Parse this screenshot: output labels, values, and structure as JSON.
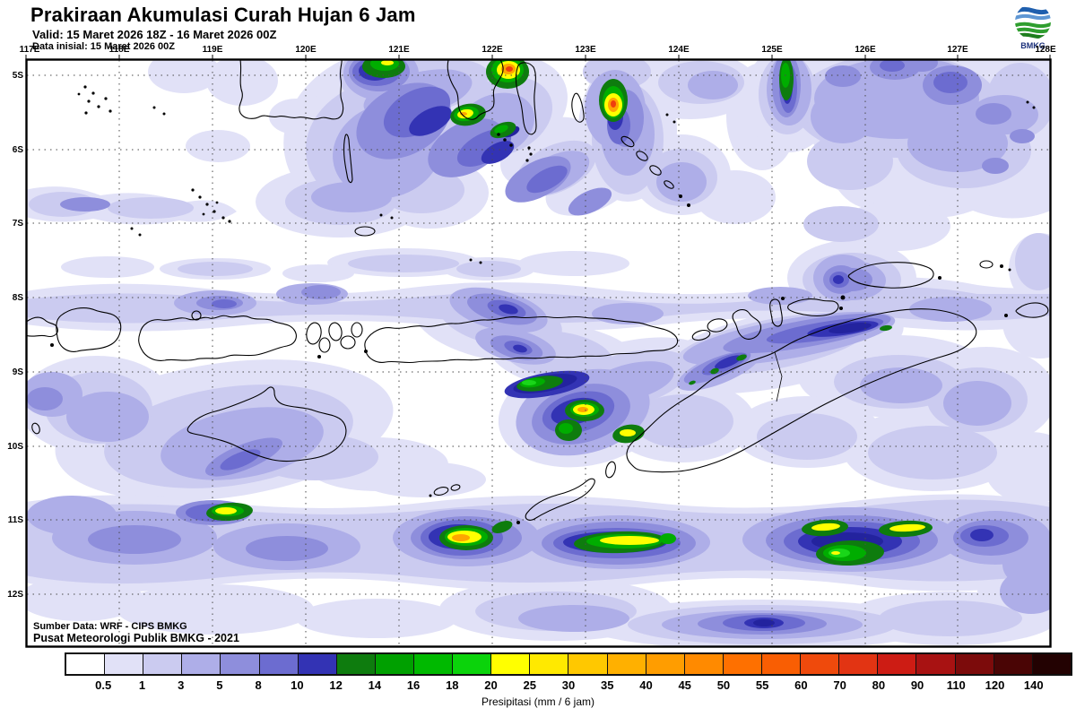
{
  "header": {
    "title": "Prakiraan Akumulasi Curah Hujan 6 Jam",
    "valid": "Valid: 15 Maret 2026 18Z - 16 Maret 2026 00Z",
    "initial": "Data inisial: 15 Maret 2026 00Z"
  },
  "logo": {
    "label": "BMKG"
  },
  "map": {
    "lon_labels": [
      "117E",
      "118E",
      "119E",
      "120E",
      "121E",
      "122E",
      "123E",
      "124E",
      "125E",
      "126E",
      "127E",
      "128E"
    ],
    "lat_labels": [
      "5S",
      "6S",
      "7S",
      "8S",
      "9S",
      "10S",
      "11S",
      "12S"
    ],
    "source_line1": "Sumber Data: WRF - CIPS BMKG",
    "source_line2": "Pusat Meteorologi Publik BMKG - 2021"
  },
  "colorbar": {
    "caption": "Presipitasi (mm / 6 jam)",
    "tick_labels": [
      "0.5",
      "1",
      "3",
      "5",
      "8",
      "10",
      "12",
      "14",
      "16",
      "18",
      "20",
      "25",
      "30",
      "35",
      "40",
      "45",
      "50",
      "55",
      "60",
      "70",
      "80",
      "90",
      "110",
      "120",
      "140"
    ],
    "cell_colors": [
      "#ffffff",
      "#e1e1f7",
      "#cbcbf0",
      "#aeaee8",
      "#8e8edc",
      "#6c6cd0",
      "#3333b4",
      "#0e7c0e",
      "#00a000",
      "#00b900",
      "#0bd30b",
      "#ffff00",
      "#ffe900",
      "#ffc800",
      "#ffb000",
      "#ff9d00",
      "#ff8a00",
      "#fe7000",
      "#f95e03",
      "#ef4a0c",
      "#e23413",
      "#cd1c14",
      "#a81212",
      "#7c0b0b",
      "#4a0505",
      "#230202"
    ]
  },
  "chart_data": {
    "type": "heatmap",
    "title": "Prakiraan Akumulasi Curah Hujan 6 Jam",
    "units": "mm / 6 jam",
    "x_axis": {
      "ticks": [
        "117E",
        "118E",
        "119E",
        "120E",
        "121E",
        "122E",
        "123E",
        "124E",
        "125E",
        "126E",
        "127E",
        "128E"
      ]
    },
    "y_axis": {
      "ticks": [
        "5S",
        "6S",
        "7S",
        "8S",
        "9S",
        "10S",
        "11S",
        "12S"
      ]
    },
    "legend_levels": [
      0.5,
      1,
      3,
      5,
      8,
      10,
      12,
      14,
      16,
      18,
      20,
      25,
      30,
      35,
      40,
      45,
      50,
      55,
      60,
      70,
      80,
      90,
      110,
      120,
      140
    ],
    "legend_position": "bottom"
  }
}
